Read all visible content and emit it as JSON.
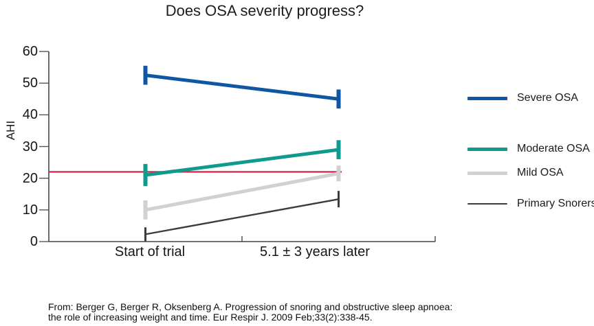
{
  "chart_data": {
    "type": "line",
    "title": "Does OSA severity progress?",
    "xlabel": "",
    "ylabel": "AHI",
    "categories": [
      "Start of trial",
      "5.1 ± 3 years later"
    ],
    "ylim": [
      0,
      60
    ],
    "yticks": [
      60,
      50,
      40,
      30,
      20,
      10,
      0
    ],
    "grid": false,
    "legend_position": "right",
    "reference_line": {
      "value": 22,
      "color": "#d9294d"
    },
    "series": [
      {
        "name": "Severe OSA",
        "values": [
          52.5,
          45.0
        ],
        "errors": [
          3.0,
          3.0
        ],
        "color": "#0f57a2",
        "line_width": 5
      },
      {
        "name": "Moderate OSA",
        "values": [
          21.0,
          29.0
        ],
        "errors": [
          3.5,
          3.0
        ],
        "color": "#0e9b8d",
        "line_width": 5
      },
      {
        "name": "Mild OSA",
        "values": [
          10.0,
          21.5
        ],
        "errors": [
          3.0,
          2.5
        ],
        "color": "#d1d0d2",
        "line_width": 5
      },
      {
        "name": "Primary Snorers",
        "values": [
          2.3,
          13.4
        ],
        "errors": [
          2.2,
          2.6
        ],
        "color": "#3c3c3c",
        "line_width": 2.4
      }
    ]
  },
  "citation": {
    "line1": "From: Berger G, Berger R, Oksenberg A. Progression of snoring and obstructive sleep apnoea:",
    "line2": "the role of increasing weight and time. Eur Respir J. 2009 Feb;33(2):338-45."
  }
}
